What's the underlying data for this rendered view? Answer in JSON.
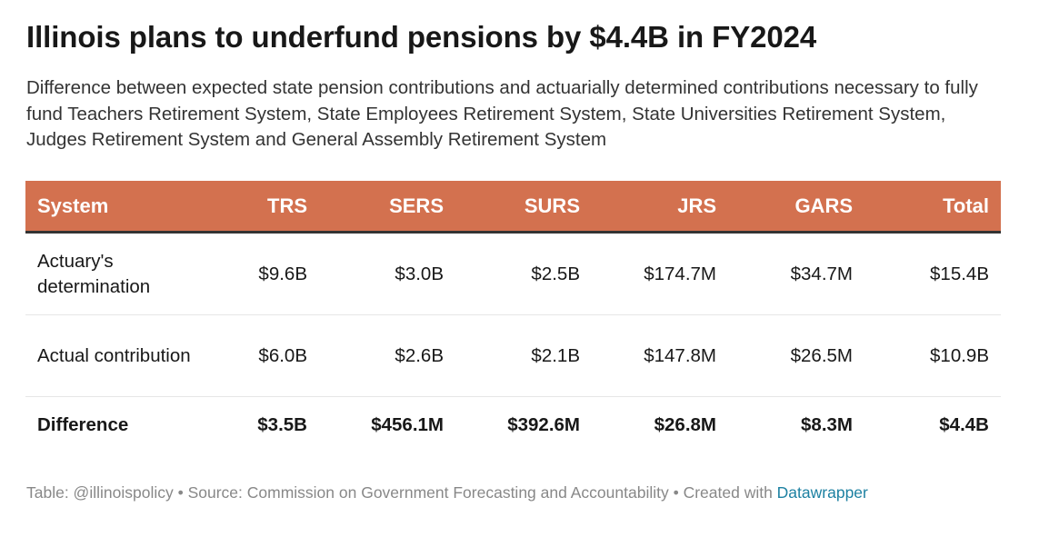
{
  "title": "Illinois plans to underfund pensions by $4.4B in FY2024",
  "subtitle": "Difference between expected state pension contributions and actuarially determined contributions necessary to fully fund Teachers Retirement System, State Employees Retirement System, State Universities Retirement System, Judges Retirement System and General Assembly Retirement System",
  "colors": {
    "header_background": "#d3714f",
    "header_text": "#ffffff",
    "link": "#1d81a2",
    "notes": "#888888"
  },
  "chart_data": {
    "type": "table",
    "title": "Illinois plans to underfund pensions by $4.4B in FY2024",
    "columns": [
      "System",
      "TRS",
      "SERS",
      "SURS",
      "JRS",
      "GARS",
      "Total"
    ],
    "rows": [
      {
        "label": "Actuary's determination",
        "values": [
          "$9.6B",
          "$3.0B",
          "$2.5B",
          "$174.7M",
          "$34.7M",
          "$15.4B"
        ]
      },
      {
        "label": "Actual contribution",
        "values": [
          "$6.0B",
          "$2.6B",
          "$2.1B",
          "$147.8M",
          "$26.5M",
          "$10.9B"
        ]
      },
      {
        "label": "Difference",
        "values": [
          "$3.5B",
          "$456.1M",
          "$392.6M",
          "$26.8M",
          "$8.3M",
          "$4.4B"
        ]
      }
    ]
  },
  "footer": {
    "notes_text": "Table: @illinoispolicy • Source: Commission on Government Forecasting and Accountability • Created with ",
    "link_text": "Datawrapper"
  }
}
